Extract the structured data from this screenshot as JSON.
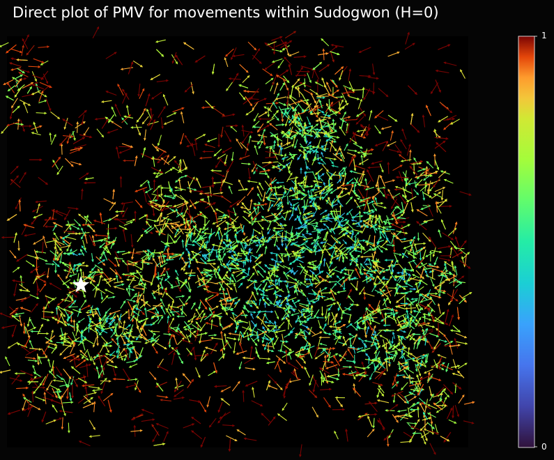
{
  "chart_data": {
    "type": "quiver",
    "title": "Direct plot of PMV for movements within Sudogwon (H=0)",
    "xlabel": "",
    "ylabel": "",
    "colormap": "turbo",
    "colorbar": {
      "min_label": "0",
      "max_label": "1",
      "position": "right"
    },
    "marker": {
      "symbol": "star",
      "color": "#ffffff"
    },
    "background": "#050505"
  }
}
